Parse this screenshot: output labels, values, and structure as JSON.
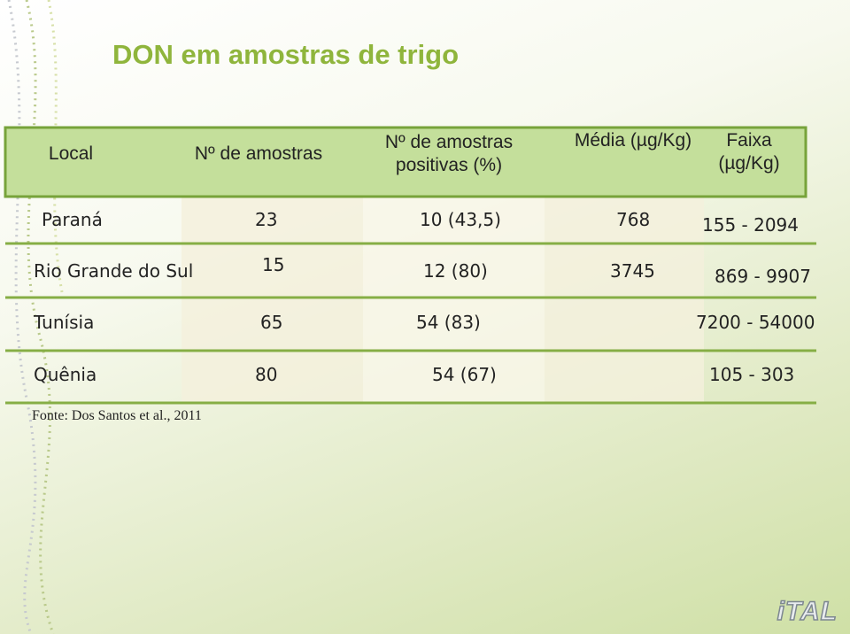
{
  "title": "DON em amostras de trigo",
  "table": {
    "header": [
      "Local",
      "Nº de amostras",
      "Nº de amostras positivas (%)",
      "Média (µg/Kg)",
      "Faixa (µg/Kg)"
    ],
    "rows": [
      [
        "Paraná",
        "23",
        "10 (43,5)",
        "768",
        "155 - 2094"
      ],
      [
        "Rio Grande do Sul",
        "15",
        "12 (80)",
        "3745",
        "869 - 9907"
      ],
      [
        "Tunísia",
        "65",
        "54 (83)",
        null,
        "7200 - 54000"
      ],
      [
        "Quênia",
        "80",
        "54 (67)",
        null,
        "105 - 303"
      ]
    ]
  },
  "source": "Fonte: Dos Santos et al., 2011",
  "logo": "iTAL"
}
